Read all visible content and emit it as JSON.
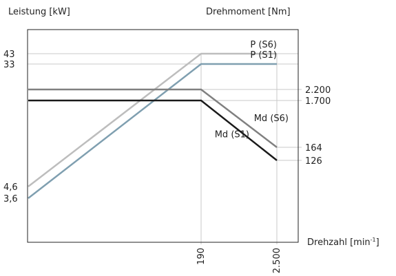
{
  "chart_data": {
    "type": "line",
    "left_axis_label": "Leistung [kW]",
    "right_axis_label": "Drehmoment [Nm]",
    "x_axis_label_main": "Drehzahl [min",
    "x_axis_label_sup": "-1",
    "x_axis_label_end": "]",
    "x_ticks": [
      {
        "value": 190,
        "label": "190"
      },
      {
        "value": 2500,
        "label": "2.500"
      }
    ],
    "left_ticks": [
      {
        "value": 43,
        "label": "43"
      },
      {
        "value": 33,
        "label": "33"
      },
      {
        "value": 4.6,
        "label": "4,6"
      },
      {
        "value": 3.6,
        "label": "3,6"
      }
    ],
    "right_ticks": [
      {
        "value": 2200,
        "label": "2.200"
      },
      {
        "value": 1700,
        "label": "1.700"
      },
      {
        "value": 164,
        "label": "164"
      },
      {
        "value": 126,
        "label": "126"
      }
    ],
    "series": [
      {
        "name": "P (S6)",
        "axis": "left",
        "color": "#bdbdbd",
        "label_anchor_x": 2500,
        "points": [
          [
            0,
            4.6
          ],
          [
            190,
            43
          ],
          [
            2500,
            43
          ]
        ]
      },
      {
        "name": "P (S1)",
        "axis": "left",
        "color": "#7f9fb0",
        "label_anchor_x": 2500,
        "points": [
          [
            0,
            3.6
          ],
          [
            190,
            33
          ],
          [
            2500,
            33
          ]
        ]
      },
      {
        "name": "Md (S6)",
        "axis": "right",
        "color": "#808080",
        "label_anchor_x": 2500,
        "points": [
          [
            0,
            2200
          ],
          [
            190,
            2200
          ],
          [
            2500,
            164
          ]
        ]
      },
      {
        "name": "Md (S1)",
        "axis": "right",
        "color": "#1a1a1a",
        "label_anchor_x": 1000,
        "points": [
          [
            0,
            1700
          ],
          [
            190,
            1700
          ],
          [
            2500,
            126
          ]
        ]
      }
    ]
  }
}
